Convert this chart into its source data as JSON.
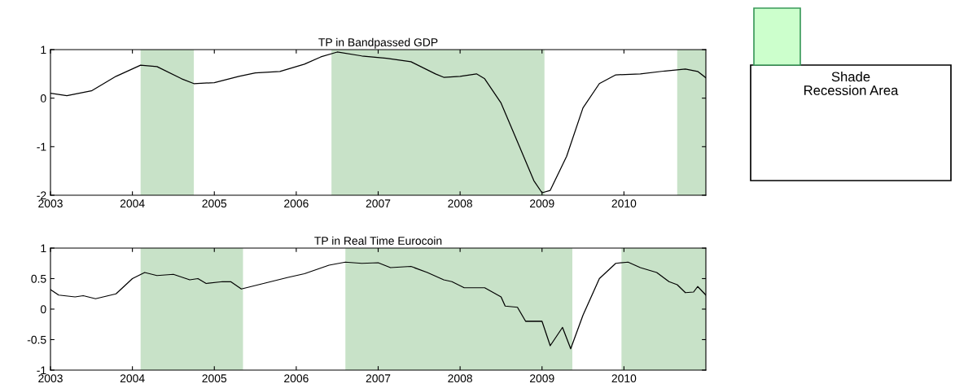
{
  "chart_data": [
    {
      "type": "line",
      "title": "TP in Bandpassed GDP",
      "xlim": [
        2003,
        2011
      ],
      "xticks": [
        2003,
        2004,
        2005,
        2006,
        2007,
        2008,
        2009,
        2010
      ],
      "ylim": [
        -2,
        1
      ],
      "yticks": [
        1,
        0,
        -1,
        -2
      ],
      "grid": false,
      "legend": false,
      "series": [
        {
          "color": "#000000",
          "x": [
            2003,
            2003.2,
            2003.5,
            2003.8,
            2004.1,
            2004.3,
            2004.6,
            2004.75,
            2005,
            2005.3,
            2005.5,
            2005.8,
            2006.1,
            2006.3,
            2006.5,
            2006.8,
            2007.1,
            2007.4,
            2007.7,
            2007.8,
            2008,
            2008.2,
            2008.3,
            2008.5,
            2008.7,
            2008.9,
            2009,
            2009.1,
            2009.3,
            2009.5,
            2009.7,
            2009.9,
            2010.2,
            2010.5,
            2010.75,
            2010.9,
            2011
          ],
          "values": [
            0.1,
            0.05,
            0.15,
            0.45,
            0.68,
            0.65,
            0.4,
            0.3,
            0.32,
            0.45,
            0.52,
            0.55,
            0.7,
            0.85,
            0.95,
            0.87,
            0.82,
            0.75,
            0.5,
            0.43,
            0.45,
            0.5,
            0.4,
            -0.1,
            -0.9,
            -1.7,
            -1.95,
            -1.9,
            -1.2,
            -0.2,
            0.3,
            0.48,
            0.5,
            0.56,
            0.6,
            0.55,
            0.42
          ]
        }
      ],
      "bands": [
        {
          "axis": "x",
          "from": 2004.1,
          "to": 2004.75,
          "color": "#c8e2c8"
        },
        {
          "axis": "x",
          "from": 2006.43,
          "to": 2009.03,
          "color": "#c8e2c8"
        },
        {
          "axis": "x",
          "from": 2010.65,
          "to": 2011,
          "color": "#c8e2c8"
        }
      ],
      "annotations": [
        "Shade\nRecession Area"
      ]
    },
    {
      "type": "line",
      "title": "TP in Real Time Eurocoin",
      "xlim": [
        2003,
        2011
      ],
      "xticks": [
        2003,
        2004,
        2005,
        2006,
        2007,
        2008,
        2009,
        2010
      ],
      "ylim": [
        -1,
        1
      ],
      "yticks": [
        1,
        0.5,
        0,
        -0.5,
        -1
      ],
      "grid": false,
      "legend": false,
      "series": [
        {
          "color": "#000000",
          "x": [
            2003,
            2003.1,
            2003.3,
            2003.4,
            2003.55,
            2003.8,
            2004,
            2004.15,
            2004.3,
            2004.5,
            2004.7,
            2004.8,
            2004.9,
            2005.1,
            2005.2,
            2005.33,
            2005.6,
            2005.9,
            2006.1,
            2006.4,
            2006.6,
            2006.8,
            2007,
            2007.15,
            2007.4,
            2007.6,
            2007.8,
            2007.9,
            2008.05,
            2008.3,
            2008.5,
            2008.55,
            2008.7,
            2008.8,
            2009,
            2009.1,
            2009.25,
            2009.35,
            2009.5,
            2009.7,
            2009.9,
            2010.05,
            2010.2,
            2010.4,
            2010.55,
            2010.65,
            2010.75,
            2010.85,
            2010.9,
            2011
          ],
          "values": [
            0.32,
            0.23,
            0.2,
            0.22,
            0.17,
            0.25,
            0.5,
            0.6,
            0.55,
            0.57,
            0.48,
            0.5,
            0.42,
            0.45,
            0.45,
            0.33,
            0.42,
            0.52,
            0.58,
            0.72,
            0.77,
            0.75,
            0.76,
            0.68,
            0.7,
            0.6,
            0.48,
            0.45,
            0.35,
            0.35,
            0.2,
            0.05,
            0.03,
            -0.2,
            -0.2,
            -0.6,
            -0.3,
            -0.65,
            -0.1,
            0.5,
            0.75,
            0.77,
            0.68,
            0.6,
            0.45,
            0.4,
            0.27,
            0.28,
            0.37,
            0.23
          ]
        }
      ],
      "bands": [
        {
          "axis": "x",
          "from": 2004.1,
          "to": 2005.35,
          "color": "#c8e2c8"
        },
        {
          "axis": "x",
          "from": 2006.6,
          "to": 2009.37,
          "color": "#c8e2c8"
        },
        {
          "axis": "x",
          "from": 2009.97,
          "to": 2011,
          "color": "#c8e2c8"
        }
      ]
    }
  ]
}
